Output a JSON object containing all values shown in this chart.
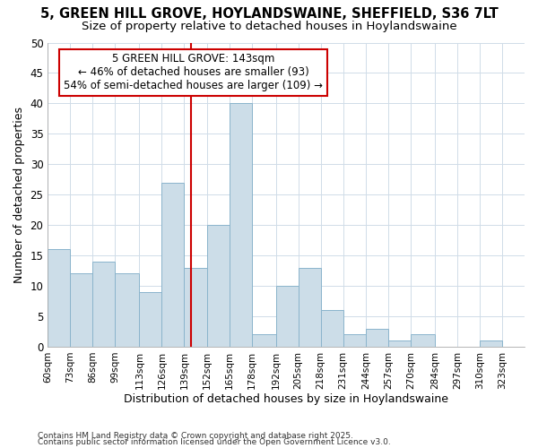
{
  "title1": "5, GREEN HILL GROVE, HOYLANDSWAINE, SHEFFIELD, S36 7LT",
  "title2": "Size of property relative to detached houses in Hoylandswaine",
  "xlabel": "Distribution of detached houses by size in Hoylandswaine",
  "ylabel": "Number of detached properties",
  "bin_labels": [
    "60sqm",
    "73sqm",
    "86sqm",
    "99sqm",
    "113sqm",
    "126sqm",
    "139sqm",
    "152sqm",
    "165sqm",
    "178sqm",
    "192sqm",
    "205sqm",
    "218sqm",
    "231sqm",
    "244sqm",
    "257sqm",
    "270sqm",
    "284sqm",
    "297sqm",
    "310sqm",
    "323sqm"
  ],
  "bin_edges": [
    60,
    73,
    86,
    99,
    113,
    126,
    139,
    152,
    165,
    178,
    192,
    205,
    218,
    231,
    244,
    257,
    270,
    284,
    297,
    310,
    323
  ],
  "bar_heights": [
    16,
    12,
    14,
    12,
    9,
    27,
    13,
    20,
    40,
    2,
    10,
    13,
    6,
    2,
    3,
    1,
    2,
    0,
    0,
    1,
    0
  ],
  "bar_color": "#ccdde8",
  "bar_edgecolor": "#8ab4cc",
  "vline_x": 143,
  "vline_color": "#cc0000",
  "annotation_title": "5 GREEN HILL GROVE: 143sqm",
  "annotation_line1": "← 46% of detached houses are smaller (93)",
  "annotation_line2": "54% of semi-detached houses are larger (109) →",
  "annotation_box_edgecolor": "#cc0000",
  "ylim": [
    0,
    50
  ],
  "yticks": [
    0,
    5,
    10,
    15,
    20,
    25,
    30,
    35,
    40,
    45,
    50
  ],
  "footer1": "Contains HM Land Registry data © Crown copyright and database right 2025.",
  "footer2": "Contains public sector information licensed under the Open Government Licence v3.0.",
  "bg_color": "#ffffff",
  "plot_bg_color": "#ffffff",
  "grid_color": "#d0dce8",
  "title_fontsize": 10.5,
  "subtitle_fontsize": 9.5,
  "annotation_fontsize": 8.5
}
